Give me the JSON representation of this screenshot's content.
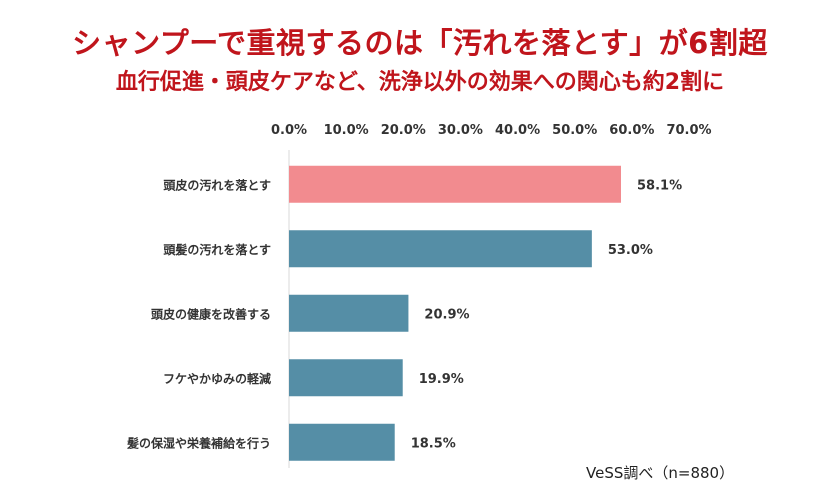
{
  "header": {
    "title": "シャンプーで重視するのは「汚れを落とす」が6割超",
    "subtitle": "血行促進・頭皮ケアなど、洗浄以外の効果への関心も約2割に"
  },
  "source": "VeSS調べ（n=880）",
  "colors": {
    "title": "#c0151c",
    "highlight_bar": "#f28b8f",
    "bar": "#558ea6",
    "axis": "#d9d9d9",
    "text": "#333333"
  },
  "chart_data": {
    "type": "bar",
    "orientation": "horizontal",
    "categories": [
      "頭皮の汚れを落とす",
      "頭髪の汚れを落とす",
      "頭皮の健康を改善する",
      "フケやかゆみの軽減",
      "髪の保湿や栄養補給を行う"
    ],
    "values": [
      58.1,
      53.0,
      20.9,
      19.9,
      18.5
    ],
    "value_labels": [
      "58.1%",
      "53.0%",
      "20.9%",
      "19.9%",
      "18.5%"
    ],
    "highlight_index": 0,
    "xlim": [
      0,
      70
    ],
    "x_ticks": [
      "0.0%",
      "10.0%",
      "20.0%",
      "30.0%",
      "40.0%",
      "50.0%",
      "60.0%",
      "70.0%"
    ],
    "x_axis_position": "top",
    "grid": false
  }
}
